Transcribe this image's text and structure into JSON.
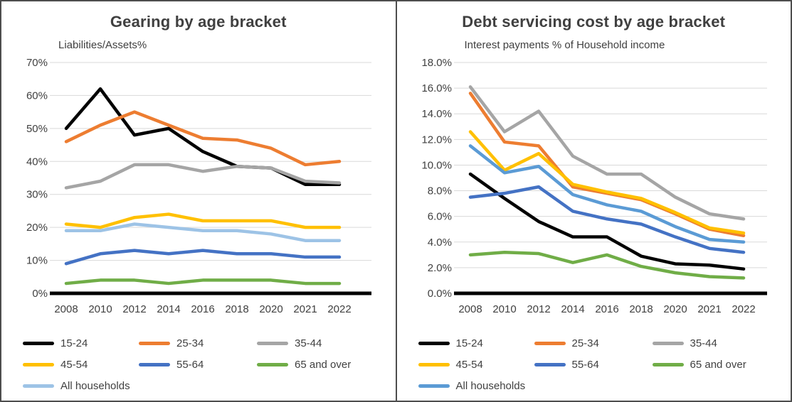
{
  "chart_data": [
    {
      "type": "line",
      "title": "Gearing by age bracket",
      "subtitle": "Liabilities/Assets%",
      "categories": [
        "2008",
        "2010",
        "2012",
        "2014",
        "2016",
        "2018",
        "2020",
        "2021",
        "2022"
      ],
      "ylim": [
        0,
        70
      ],
      "grid": true,
      "legend_position": "bottom",
      "axis_color": "#000000",
      "gridline_color": "#d9d9d9",
      "text_color": "#404040",
      "yticks": [
        {
          "value": 70,
          "label": "70%"
        },
        {
          "value": 60,
          "label": "60%"
        },
        {
          "value": 50,
          "label": "50%"
        },
        {
          "value": 40,
          "label": "40%"
        },
        {
          "value": 30,
          "label": "30%"
        },
        {
          "value": 20,
          "label": "20%"
        },
        {
          "value": 10,
          "label": "10%"
        },
        {
          "value": 0,
          "label": "0%"
        }
      ],
      "series": [
        {
          "name": "15-24",
          "color": "#000000",
          "values": [
            50,
            62,
            48,
            50,
            43,
            38.5,
            38,
            33,
            33
          ]
        },
        {
          "name": "25-34",
          "color": "#ED7D31",
          "values": [
            46,
            51,
            55,
            51,
            47,
            46.5,
            44,
            39,
            40
          ]
        },
        {
          "name": "35-44",
          "color": "#A5A5A5",
          "values": [
            32,
            34,
            39,
            39,
            37,
            38.5,
            38,
            34,
            33.5
          ]
        },
        {
          "name": "45-54",
          "color": "#FFC000",
          "values": [
            21,
            20,
            23,
            24,
            22,
            22,
            22,
            20,
            20
          ]
        },
        {
          "name": "55-64",
          "color": "#4472C4",
          "values": [
            9,
            12,
            13,
            12,
            13,
            12,
            12,
            11,
            11
          ]
        },
        {
          "name": "65 and over",
          "color": "#70AD47",
          "values": [
            3,
            4,
            4,
            3,
            4,
            4,
            4,
            3,
            3
          ]
        },
        {
          "name": "All households",
          "color": "#9DC3E6",
          "values": [
            19,
            19,
            21,
            20,
            19,
            19,
            18,
            16,
            16
          ]
        }
      ]
    },
    {
      "type": "line",
      "title": "Debt servicing cost by age bracket",
      "subtitle": "Interest payments % of Household income",
      "categories": [
        "2008",
        "2010",
        "2012",
        "2014",
        "2016",
        "2018",
        "2020",
        "2021",
        "2022"
      ],
      "ylim": [
        0,
        18
      ],
      "grid": true,
      "legend_position": "bottom",
      "axis_color": "#000000",
      "gridline_color": "#d9d9d9",
      "text_color": "#404040",
      "yticks": [
        {
          "value": 18,
          "label": "18.0%"
        },
        {
          "value": 16,
          "label": "16.0%"
        },
        {
          "value": 14,
          "label": "14.0%"
        },
        {
          "value": 12,
          "label": "12.0%"
        },
        {
          "value": 10,
          "label": "10.0%"
        },
        {
          "value": 8,
          "label": "8.0%"
        },
        {
          "value": 6,
          "label": "6.0%"
        },
        {
          "value": 4,
          "label": "4.0%"
        },
        {
          "value": 2,
          "label": "2.0%"
        },
        {
          "value": 0,
          "label": "0.0%"
        }
      ],
      "series": [
        {
          "name": "15-24",
          "color": "#000000",
          "values": [
            9.3,
            7.4,
            5.6,
            4.4,
            4.4,
            2.9,
            2.3,
            2.2,
            1.9
          ]
        },
        {
          "name": "25-34",
          "color": "#ED7D31",
          "values": [
            15.6,
            11.8,
            11.5,
            8.3,
            7.8,
            7.3,
            6.2,
            5.0,
            4.5
          ]
        },
        {
          "name": "35-44",
          "color": "#A5A5A5",
          "values": [
            16.1,
            12.6,
            14.2,
            10.7,
            9.3,
            9.3,
            7.5,
            6.2,
            5.8
          ]
        },
        {
          "name": "45-54",
          "color": "#FFC000",
          "values": [
            12.6,
            9.6,
            10.9,
            8.5,
            7.9,
            7.4,
            6.3,
            5.1,
            4.7
          ]
        },
        {
          "name": "55-64",
          "color": "#4472C4",
          "values": [
            7.5,
            7.8,
            8.3,
            6.4,
            5.8,
            5.4,
            4.4,
            3.5,
            3.2
          ]
        },
        {
          "name": "65 and over",
          "color": "#70AD47",
          "values": [
            3.0,
            3.2,
            3.1,
            2.4,
            3.0,
            2.1,
            1.6,
            1.3,
            1.2
          ]
        },
        {
          "name": "All households",
          "color": "#5B9BD5",
          "values": [
            11.5,
            9.4,
            9.9,
            7.7,
            6.9,
            6.4,
            5.2,
            4.2,
            4.0
          ]
        }
      ]
    }
  ]
}
